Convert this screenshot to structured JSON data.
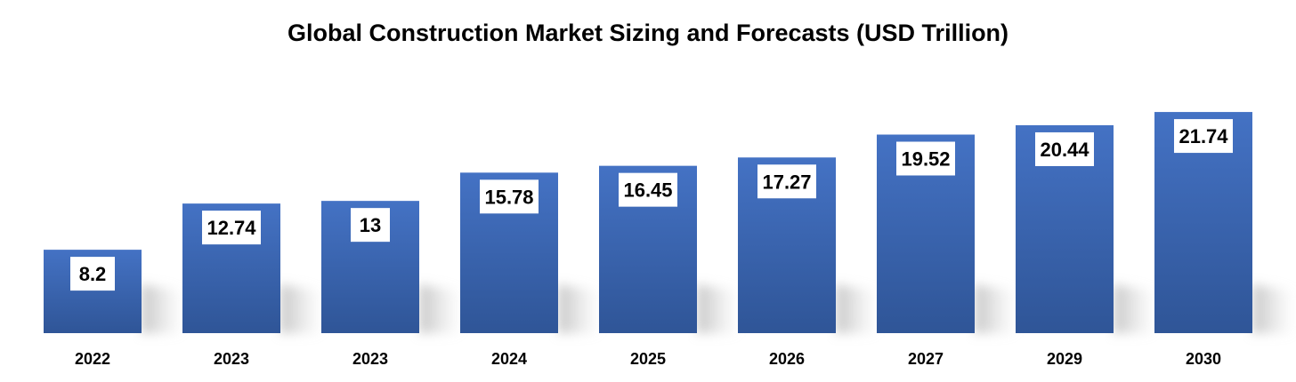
{
  "chart_data": {
    "type": "bar",
    "title": "Global Construction Market Sizing and Forecasts (USD Trillion)",
    "categories": [
      "2022",
      "2023",
      "2023",
      "2024",
      "2025",
      "2026",
      "2027",
      "2029",
      "2030"
    ],
    "values": [
      8.2,
      12.74,
      13,
      15.78,
      16.45,
      17.27,
      19.52,
      20.44,
      21.74
    ],
    "value_labels": [
      "8.2",
      "12.74",
      "13",
      "15.78",
      "16.45",
      "17.27",
      "19.52",
      "20.44",
      "21.74"
    ],
    "xlabel": "",
    "ylabel": "",
    "ylim": [
      0,
      24
    ],
    "grid": false,
    "legend": "none",
    "bar_color_top": "#4472c4",
    "bar_color_bottom": "#2f5597",
    "label_box_color": "#ffffff",
    "text_color": "#000000"
  }
}
